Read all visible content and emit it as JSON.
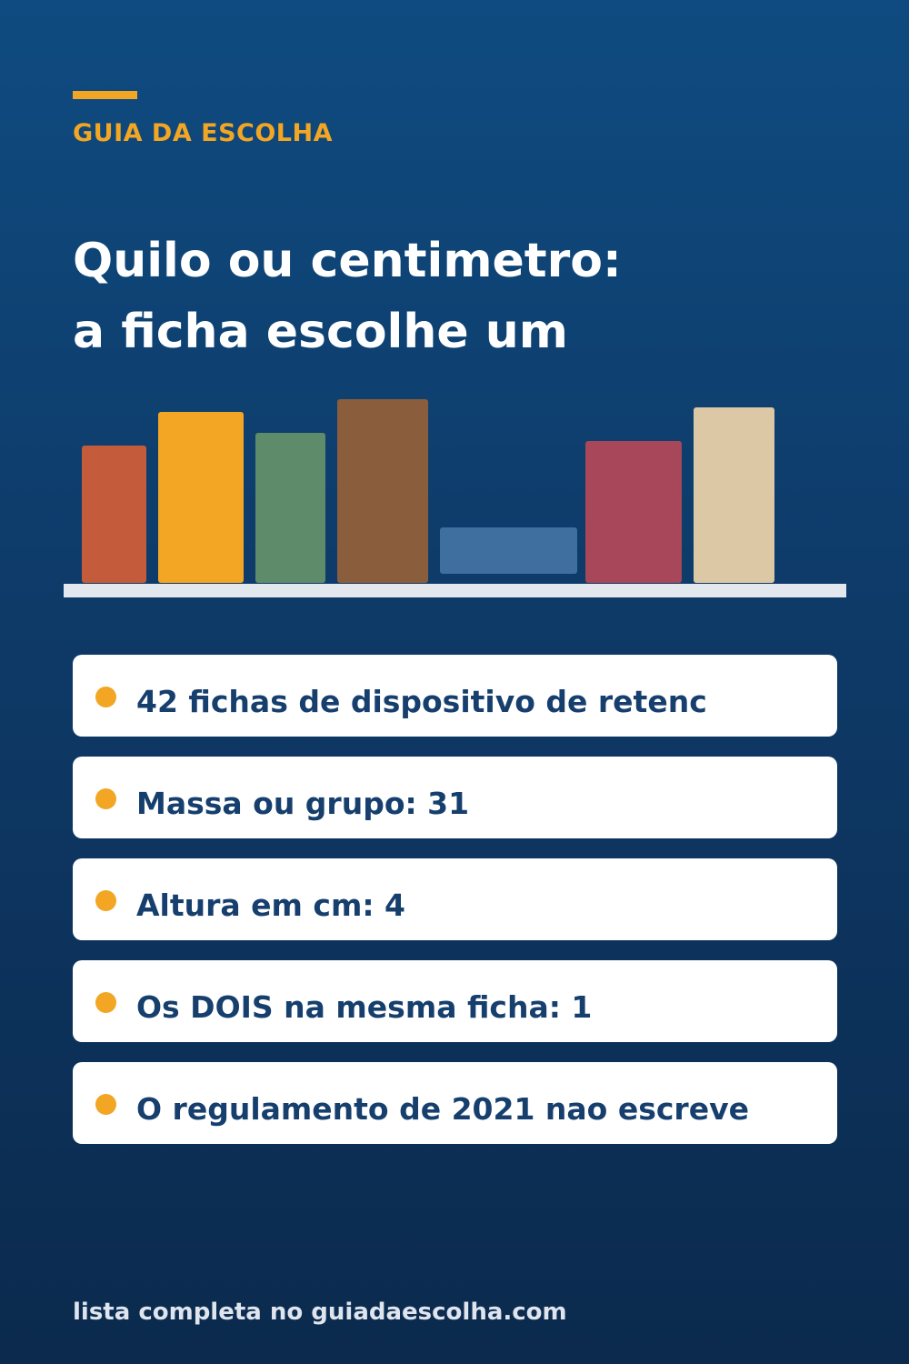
{
  "header": {
    "brand": "GUIA DA ESCOLHA"
  },
  "headline": {
    "line1": "Quilo ou centimetro:",
    "line2": "a ficha escolhe um"
  },
  "colors": {
    "background_top": "#0f4b80",
    "background_bottom": "#0b2a4d",
    "accent": "#f2a623",
    "card_text": "#163f6e",
    "books": [
      "#c45c3b",
      "#f2a623",
      "#5e8b6a",
      "#8a5e3c",
      "#3e6f9f",
      "#a8465a",
      "#dcc8a4"
    ]
  },
  "stats": [
    {
      "text": "42 fichas de dispositivo de retenc"
    },
    {
      "text": "Massa ou grupo: 31"
    },
    {
      "text": "Altura em cm: 4"
    },
    {
      "text": "Os DOIS na mesma ficha: 1"
    },
    {
      "text": "O regulamento de 2021 nao escreve"
    }
  ],
  "footer": {
    "text": "lista completa no guiadaescolha.com"
  }
}
